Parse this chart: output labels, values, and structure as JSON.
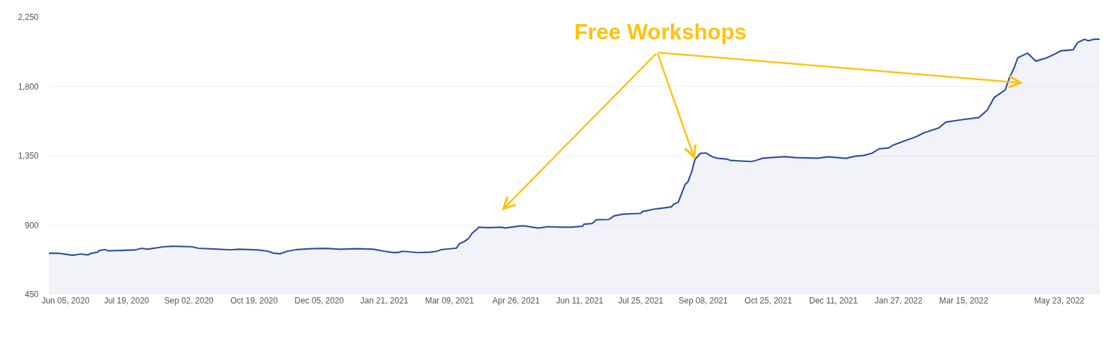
{
  "chart_data": {
    "type": "area",
    "annotations": [
      {
        "text": "Free Workshops",
        "x": "2021-09-02",
        "y": 1326
      }
    ],
    "x": [
      "2020-05-24",
      "2020-06-01",
      "2020-06-10",
      "2020-06-16",
      "2020-06-21",
      "2020-06-24",
      "2020-06-28",
      "2020-06-29",
      "2020-07-03",
      "2020-07-06",
      "2020-07-15",
      "2020-07-25",
      "2020-07-30",
      "2020-08-03",
      "2020-08-15",
      "2020-08-21",
      "2020-09-04",
      "2020-09-09",
      "2020-09-21",
      "2020-10-02",
      "2020-10-08",
      "2020-10-22",
      "2020-10-29",
      "2020-11-02",
      "2020-11-07",
      "2020-11-12",
      "2020-11-19",
      "2020-11-29",
      "2020-12-09",
      "2020-12-20",
      "2021-01-02",
      "2021-01-13",
      "2021-01-21",
      "2021-01-27",
      "2021-01-31",
      "2021-02-03",
      "2021-02-14",
      "2021-02-23",
      "2021-02-28",
      "2021-03-03",
      "2021-03-14",
      "2021-03-16",
      "2021-03-20",
      "2021-03-23",
      "2021-03-25",
      "2021-03-29",
      "2021-03-30",
      "2021-04-06",
      "2021-04-15",
      "2021-04-18",
      "2021-04-29",
      "2021-05-02",
      "2021-05-12",
      "2021-05-19",
      "2021-05-29",
      "2021-06-05",
      "2021-06-13",
      "2021-06-14",
      "2021-06-20",
      "2021-06-23",
      "2021-07-02",
      "2021-07-06",
      "2021-07-12",
      "2021-07-25",
      "2021-07-26",
      "2021-08-03",
      "2021-08-12",
      "2021-08-16",
      "2021-08-18",
      "2021-08-21",
      "2021-08-26",
      "2021-08-28",
      "2021-08-31",
      "2021-09-02",
      "2021-09-06",
      "2021-09-10",
      "2021-09-15",
      "2021-09-19",
      "2021-09-25",
      "2021-09-28",
      "2021-10-13",
      "2021-10-17",
      "2021-10-21",
      "2021-11-06",
      "2021-11-14",
      "2021-11-30",
      "2021-12-07",
      "2021-12-20",
      "2021-12-27",
      "2022-01-02",
      "2022-01-08",
      "2022-01-13",
      "2022-01-20",
      "2022-01-23",
      "2022-02-01",
      "2022-02-09",
      "2022-02-14",
      "2022-02-25",
      "2022-03-02",
      "2022-03-13",
      "2022-03-26",
      "2022-04-01",
      "2022-04-06",
      "2022-04-14",
      "2022-04-17",
      "2022-04-20",
      "2022-04-23",
      "2022-04-30",
      "2022-05-06",
      "2022-05-14",
      "2022-05-21",
      "2022-05-24",
      "2022-06-02",
      "2022-06-05",
      "2022-06-10",
      "2022-06-13",
      "2022-06-17",
      "2022-06-21"
    ],
    "series": [
      {
        "color": "#2f4f9b",
        "values": [
          718,
          717,
          705,
          713,
          707,
          718,
          724,
          734,
          742,
          734,
          736,
          739,
          750,
          744,
          760,
          763,
          760,
          750,
          745,
          740,
          744,
          739,
          731,
          718,
          715,
          731,
          742,
          747,
          749,
          744,
          747,
          744,
          731,
          723,
          723,
          731,
          722,
          725,
          731,
          741,
          751,
          779,
          796,
          816,
          844,
          876,
          887,
          884,
          887,
          882,
          895,
          895,
          882,
          890,
          887,
          887,
          893,
          906,
          911,
          935,
          937,
          961,
          971,
          977,
          988,
          1003,
          1014,
          1019,
          1038,
          1048,
          1165,
          1181,
          1254,
          1326,
          1366,
          1369,
          1342,
          1334,
          1329,
          1320,
          1313,
          1323,
          1335,
          1345,
          1338,
          1335,
          1344,
          1334,
          1348,
          1353,
          1368,
          1396,
          1402,
          1420,
          1450,
          1475,
          1499,
          1531,
          1569,
          1584,
          1599,
          1647,
          1729,
          1778,
          1860,
          1913,
          1987,
          2017,
          1965,
          1987,
          2017,
          2032,
          2039,
          2084,
          2107,
          2097,
          2107,
          2107
        ]
      }
    ],
    "xlim": [
      "2020-05-24",
      "2022-06-21"
    ],
    "xticks": [
      {
        "value": "2020-06-05",
        "label": "Jun 05, 2020"
      },
      {
        "value": "2020-07-19",
        "label": "Jul 19, 2020"
      },
      {
        "value": "2020-09-02",
        "label": "Sep 02, 2020"
      },
      {
        "value": "2020-10-19",
        "label": "Oct 19, 2020"
      },
      {
        "value": "2020-12-05",
        "label": "Dec 05, 2020"
      },
      {
        "value": "2021-01-21",
        "label": "Jan 21, 2021"
      },
      {
        "value": "2021-03-09",
        "label": "Mar 09, 2021"
      },
      {
        "value": "2021-04-26",
        "label": "Apr 26, 2021"
      },
      {
        "value": "2021-06-11",
        "label": "Jun 11, 2021"
      },
      {
        "value": "2021-07-25",
        "label": "Jul 25, 2021"
      },
      {
        "value": "2021-09-08",
        "label": "Sep 08, 2021"
      },
      {
        "value": "2021-10-25",
        "label": "Oct 25, 2021"
      },
      {
        "value": "2021-12-11",
        "label": "Dec 11, 2021"
      },
      {
        "value": "2022-01-27",
        "label": "Jan 27, 2022"
      },
      {
        "value": "2022-03-15",
        "label": "Mar 15, 2022"
      },
      {
        "value": "2022-05-23",
        "label": "May 23, 2022"
      }
    ],
    "ylim": [
      450,
      2250
    ],
    "yticks": [
      {
        "value": 450,
        "label": "450"
      },
      {
        "value": 900,
        "label": "900"
      },
      {
        "value": 1350,
        "label": "1,350"
      },
      {
        "value": 1800,
        "label": "1,800"
      },
      {
        "value": 2250,
        "label": "2,250"
      }
    ],
    "grid": "y",
    "marker": "none",
    "line_style": "solid"
  }
}
